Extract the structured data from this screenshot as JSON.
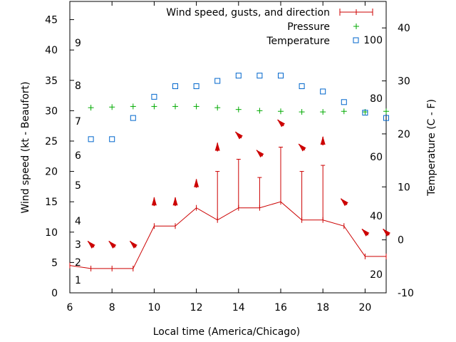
{
  "chart_data": {
    "type": "line",
    "xlabel": "Local time (America/Chicago)",
    "ylabel_left": "Wind speed (kt - Beaufort)",
    "ylabel_right": "Temperature (C - F)",
    "xlim": [
      6,
      21
    ],
    "ylim_left": [
      0,
      48
    ],
    "ylim_right": [
      -10,
      45
    ],
    "x_ticks": [
      6,
      8,
      10,
      12,
      14,
      16,
      18,
      20
    ],
    "y_ticks_left": [
      0,
      5,
      10,
      15,
      20,
      25,
      30,
      35,
      40,
      45
    ],
    "y_ticks_right": [
      -10,
      0,
      10,
      20,
      30,
      40
    ],
    "beaufort_labels": [
      {
        "label": "1",
        "kt": 1
      },
      {
        "label": "2",
        "kt": 2
      },
      {
        "label": "3",
        "kt": 3
      },
      {
        "label": "4",
        "kt": 4
      },
      {
        "label": "5",
        "kt": 5
      },
      {
        "label": "6",
        "kt": 6
      },
      {
        "label": "7",
        "kt": 7
      },
      {
        "label": "8",
        "kt": 8
      },
      {
        "label": "9",
        "kt": 9
      }
    ],
    "fahrenheit_labels": [
      "20",
      "40",
      "60",
      "80",
      "100"
    ],
    "legend_position": "top-right",
    "series": [
      {
        "name": "Wind speed, gusts, and direction",
        "color": "#cc0000",
        "x": [
          6,
          7,
          8,
          9,
          10,
          11,
          12,
          13,
          14,
          15,
          16,
          17,
          18,
          19,
          20,
          21
        ],
        "wind": [
          4.5,
          4,
          4,
          4,
          11,
          11,
          14,
          12,
          14,
          14,
          15,
          12,
          12,
          11,
          6,
          6
        ],
        "gust": [
          null,
          null,
          null,
          null,
          null,
          null,
          null,
          20,
          22,
          19,
          24,
          20,
          21,
          null,
          null,
          null
        ]
      },
      {
        "name": "Pressure",
        "color": "#00aa00",
        "x": [
          7,
          8,
          9,
          10,
          11,
          12,
          13,
          14,
          15,
          16,
          17,
          18,
          19,
          20,
          21
        ],
        "values": [
          30.5,
          30.6,
          30.7,
          30.7,
          30.7,
          30.7,
          30.5,
          30.2,
          30.0,
          29.9,
          29.8,
          29.8,
          29.9,
          29.8,
          29.9
        ]
      },
      {
        "name": "Temperature",
        "color": "#0066cc",
        "axis": "right",
        "x": [
          7,
          8,
          9,
          10,
          11,
          12,
          13,
          14,
          15,
          16,
          17,
          18,
          19,
          20,
          21
        ],
        "values": [
          19,
          19,
          23,
          27,
          29,
          29,
          30,
          31,
          31,
          31,
          29,
          28,
          26,
          24,
          23
        ]
      }
    ],
    "wind_arrows": {
      "x": [
        7,
        8,
        9,
        10,
        11,
        12,
        13,
        14,
        15,
        16,
        17,
        18,
        19,
        20,
        21
      ],
      "y": [
        8,
        8,
        8,
        15,
        15,
        18,
        24,
        26,
        23,
        28,
        24,
        25,
        15,
        10,
        10
      ],
      "direction_deg": [
        135,
        135,
        135,
        180,
        180,
        180,
        180,
        135,
        135,
        135,
        135,
        180,
        135,
        135,
        135
      ]
    }
  }
}
